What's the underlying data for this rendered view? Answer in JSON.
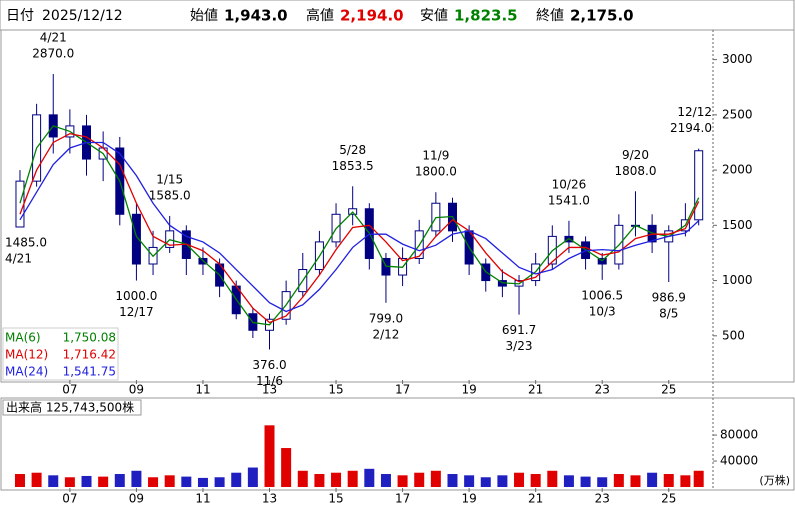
{
  "header": {
    "date_label": "日付",
    "date": "2025/12/12",
    "open_label": "始値",
    "open": "1,943.0",
    "high_label": "高値",
    "high": "2,194.0",
    "low_label": "安値",
    "low": "1,823.5",
    "close_label": "終値",
    "close": "2,175.0"
  },
  "chart_data": [
    {
      "type": "candlestick",
      "x": [
        2005.5,
        2006,
        2006.5,
        2007,
        2007.5,
        2008,
        2008.5,
        2009,
        2009.5,
        2010,
        2010.5,
        2011,
        2011.5,
        2012,
        2012.5,
        2013,
        2013.5,
        2014,
        2014.5,
        2015,
        2015.5,
        2016,
        2016.5,
        2017,
        2017.5,
        2018,
        2018.5,
        2019,
        2019.5,
        2020,
        2020.5,
        2021,
        2021.5,
        2022,
        2022.5,
        2023,
        2023.5,
        2024,
        2024.5,
        2025,
        2025.5,
        2025.9
      ],
      "open": [
        1485,
        1900,
        2500,
        2300,
        2400,
        2100,
        2200,
        1600,
        1150,
        1300,
        1450,
        1200,
        1150,
        950,
        700,
        550,
        650,
        900,
        1100,
        1350,
        1600,
        1650,
        1200,
        1050,
        1200,
        1450,
        1700,
        1450,
        1150,
        1000,
        950,
        1000,
        1150,
        1400,
        1350,
        1200,
        1150,
        1500,
        1500,
        1350,
        1450,
        1550
      ],
      "high": [
        2000,
        2600,
        2870,
        2550,
        2500,
        2350,
        2300,
        1700,
        1450,
        1585,
        1500,
        1300,
        1200,
        1000,
        750,
        700,
        1000,
        1250,
        1450,
        1700,
        1853.5,
        1700,
        1250,
        1300,
        1550,
        1800,
        1750,
        1500,
        1200,
        1100,
        1050,
        1250,
        1500,
        1541,
        1400,
        1250,
        1600,
        1808,
        1600,
        1500,
        1700,
        2194
      ],
      "low": [
        1485,
        1850,
        2150,
        2150,
        1950,
        1900,
        1500,
        1000,
        1050,
        1250,
        1050,
        1050,
        850,
        650,
        480,
        376,
        600,
        850,
        1050,
        1300,
        1500,
        1100,
        799,
        950,
        1150,
        1400,
        1350,
        1050,
        900,
        850,
        691.7,
        950,
        1100,
        1250,
        1100,
        1006.5,
        1100,
        1400,
        1250,
        986.9,
        1400,
        1500
      ],
      "close": [
        1900,
        2500,
        2300,
        2400,
        2100,
        2200,
        1600,
        1150,
        1300,
        1450,
        1200,
        1150,
        950,
        700,
        550,
        650,
        900,
        1100,
        1350,
        1600,
        1650,
        1200,
        1050,
        1200,
        1450,
        1700,
        1450,
        1150,
        1000,
        950,
        1000,
        1150,
        1400,
        1350,
        1200,
        1150,
        1500,
        1500,
        1350,
        1450,
        1550,
        2175
      ],
      "color": "#000080",
      "xlim": [
        2005.05,
        2026.3
      ],
      "xticks": [
        {
          "value": 2007,
          "label": "07"
        },
        {
          "value": 2009,
          "label": "09"
        },
        {
          "value": 2011,
          "label": "11"
        },
        {
          "value": 2013,
          "label": "13"
        },
        {
          "value": 2015,
          "label": "15"
        },
        {
          "value": 2017,
          "label": "17"
        },
        {
          "value": 2019,
          "label": "19"
        },
        {
          "value": 2021,
          "label": "21"
        },
        {
          "value": 2023,
          "label": "23"
        },
        {
          "value": 2025,
          "label": "25"
        }
      ],
      "ylim": [
        100,
        3250
      ],
      "yticks": [
        500,
        1000,
        1500,
        2000,
        2500,
        3000
      ],
      "series": [
        {
          "name": "MA(6)",
          "color": "#008000",
          "values": [
            1700,
            2200,
            2400,
            2350,
            2250,
            2150,
            1900,
            1400,
            1220,
            1370,
            1330,
            1180,
            1050,
            830,
            620,
            600,
            780,
            1000,
            1220,
            1470,
            1620,
            1430,
            1130,
            1120,
            1320,
            1570,
            1580,
            1300,
            1080,
            980,
            970,
            1080,
            1270,
            1380,
            1280,
            1180,
            1320,
            1500,
            1430,
            1400,
            1500,
            1750.08
          ],
          "value_labels": [
            null,
            null,
            null,
            null,
            null,
            null,
            null,
            null,
            null,
            null,
            null,
            null,
            null,
            null,
            null,
            null,
            null,
            null,
            null,
            null,
            null,
            null,
            null,
            null,
            null,
            null,
            null,
            null,
            null,
            null,
            null,
            null,
            null,
            null,
            null,
            null,
            null,
            null,
            null,
            null,
            null,
            "1,750.08"
          ]
        },
        {
          "name": "MA(12)",
          "color": "#e00000",
          "values": [
            1600,
            2000,
            2250,
            2330,
            2300,
            2200,
            2050,
            1700,
            1400,
            1320,
            1330,
            1270,
            1150,
            950,
            750,
            620,
            680,
            850,
            1050,
            1280,
            1480,
            1500,
            1350,
            1180,
            1220,
            1400,
            1550,
            1450,
            1250,
            1080,
            990,
            1030,
            1170,
            1300,
            1300,
            1230,
            1260,
            1380,
            1420,
            1420,
            1470,
            1716.42
          ],
          "value_labels": [
            null,
            null,
            null,
            null,
            null,
            null,
            null,
            null,
            null,
            null,
            null,
            null,
            null,
            null,
            null,
            null,
            null,
            null,
            null,
            null,
            null,
            null,
            null,
            null,
            null,
            null,
            null,
            null,
            null,
            null,
            null,
            null,
            null,
            null,
            null,
            null,
            null,
            null,
            null,
            null,
            null,
            "1,716.42"
          ]
        },
        {
          "name": "MA(24)",
          "color": "#2020e0",
          "values": [
            1550,
            1800,
            2050,
            2200,
            2250,
            2250,
            2150,
            1950,
            1700,
            1500,
            1400,
            1350,
            1250,
            1100,
            950,
            800,
            720,
            780,
            920,
            1100,
            1300,
            1420,
            1420,
            1330,
            1270,
            1320,
            1420,
            1450,
            1380,
            1250,
            1120,
            1060,
            1100,
            1200,
            1270,
            1280,
            1270,
            1320,
            1360,
            1400,
            1430,
            1541.75
          ],
          "value_labels": [
            null,
            null,
            null,
            null,
            null,
            null,
            null,
            null,
            null,
            null,
            null,
            null,
            null,
            null,
            null,
            null,
            null,
            null,
            null,
            null,
            null,
            null,
            null,
            null,
            null,
            null,
            null,
            null,
            null,
            null,
            null,
            null,
            null,
            null,
            null,
            null,
            null,
            null,
            null,
            null,
            null,
            "1,541.75"
          ]
        }
      ],
      "annotations": [
        {
          "date": "4/21",
          "value": 2870,
          "label": "2870.0",
          "pos": "high"
        },
        {
          "date": "4/21",
          "value": 1485,
          "label": "1485.0",
          "pos": "low"
        },
        {
          "date": "12/17",
          "value": 1000,
          "label": "1000.0",
          "pos": "low"
        },
        {
          "date": "1/15",
          "value": 1585,
          "label": "1585.0",
          "pos": "high"
        },
        {
          "date": "11/6",
          "value": 376,
          "label": "376.0",
          "pos": "low"
        },
        {
          "date": "5/28",
          "value": 1853.5,
          "label": "1853.5",
          "pos": "high"
        },
        {
          "date": "2/12",
          "value": 799,
          "label": "799.0",
          "pos": "low"
        },
        {
          "date": "11/9",
          "value": 1800,
          "label": "1800.0",
          "pos": "high"
        },
        {
          "date": "3/23",
          "value": 691.7,
          "label": "691.7",
          "pos": "low"
        },
        {
          "date": "10/26",
          "value": 1541,
          "label": "1541.0",
          "pos": "high"
        },
        {
          "date": "10/3",
          "value": 1006.5,
          "label": "1006.5",
          "pos": "low"
        },
        {
          "date": "9/20",
          "value": 1808,
          "label": "1808.0",
          "pos": "high"
        },
        {
          "date": "8/5",
          "value": 986.9,
          "label": "986.9",
          "pos": "low"
        },
        {
          "date": "12/12",
          "value": 2194,
          "label": "2194.0",
          "pos": "high"
        }
      ]
    },
    {
      "type": "bar",
      "title": "出来高 125,743,500株",
      "x": [
        2005.5,
        2006,
        2006.5,
        2007,
        2007.5,
        2008,
        2008.5,
        2009,
        2009.5,
        2010,
        2010.5,
        2011,
        2011.5,
        2012,
        2012.5,
        2013,
        2013.5,
        2014,
        2014.5,
        2015,
        2015.5,
        2016,
        2016.5,
        2017,
        2017.5,
        2018,
        2018.5,
        2019,
        2019.5,
        2020,
        2020.5,
        2021,
        2021.5,
        2022,
        2022.5,
        2023,
        2023.5,
        2024,
        2024.5,
        2025,
        2025.5,
        2025.9
      ],
      "values": [
        20000,
        22000,
        18000,
        15000,
        17000,
        16000,
        20000,
        25000,
        15000,
        18000,
        16000,
        14000,
        15000,
        22000,
        30000,
        95000,
        60000,
        25000,
        20000,
        22000,
        25000,
        28000,
        20000,
        18000,
        22000,
        25000,
        20000,
        18000,
        15000,
        18000,
        22000,
        20000,
        25000,
        18000,
        16000,
        15000,
        20000,
        18000,
        22000,
        20000,
        18000,
        25000
      ],
      "up_color": "#e00000",
      "down_color": "#2020c0",
      "xlim": [
        2005.05,
        2026.3
      ],
      "xticks": [
        {
          "value": 2007,
          "label": "07"
        },
        {
          "value": 2009,
          "label": "09"
        },
        {
          "value": 2011,
          "label": "11"
        },
        {
          "value": 2013,
          "label": "13"
        },
        {
          "value": 2015,
          "label": "15"
        },
        {
          "value": 2017,
          "label": "17"
        },
        {
          "value": 2019,
          "label": "19"
        },
        {
          "value": 2021,
          "label": "21"
        },
        {
          "value": 2023,
          "label": "23"
        },
        {
          "value": 2025,
          "label": "25"
        }
      ],
      "ylim": [
        0,
        134000
      ],
      "yticks": [
        40000,
        80000
      ],
      "unit": "(万株)"
    }
  ]
}
